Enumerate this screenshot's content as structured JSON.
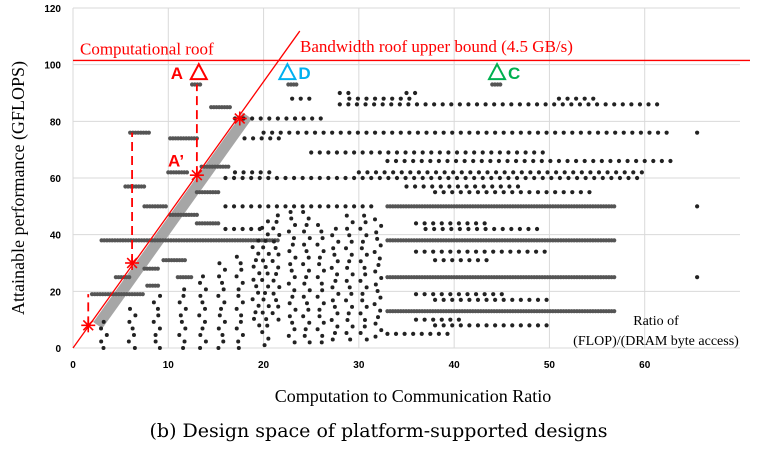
{
  "chart_data": {
    "type": "scatter",
    "title": "",
    "xlabel": "Computation to Communication Ratio",
    "ylabel": "Attainable performance (GFLOPS)",
    "xlim": [
      0,
      70
    ],
    "ylim": [
      0,
      120
    ],
    "xticks": [
      "0",
      "10",
      "20",
      "30",
      "40",
      "50",
      "60"
    ],
    "yticks": [
      "0",
      "20",
      "40",
      "60",
      "80",
      "100",
      "120"
    ],
    "grid": true,
    "computational_roof": {
      "label": "Computational roof",
      "y": 101.5,
      "color": "#ff0000"
    },
    "bandwidth_roof": {
      "label": "Bandwidth roof upper bound (4.5 GB/s)",
      "slope": 4.7,
      "x_end": 23.8,
      "color": "#ff0000"
    },
    "axis_note": [
      "Ratio of",
      "(FLOP)/(DRAM byte access)"
    ],
    "design_rows": [
      {
        "y": 93,
        "x": [
          12.5,
          13.6
        ],
        "dense": true
      },
      {
        "y": 93,
        "x": [
          22.6,
          23.6
        ],
        "dense": true
      },
      {
        "y": 93,
        "x": [
          44,
          45
        ],
        "dense": true
      },
      {
        "y": 90,
        "x": [
          28,
          29.5
        ]
      },
      {
        "y": 90,
        "x": [
          35,
          36.5
        ]
      },
      {
        "y": 88,
        "x": [
          23,
          25
        ]
      },
      {
        "y": 88,
        "x": [
          29,
          36
        ]
      },
      {
        "y": 88,
        "x": [
          51,
          55
        ]
      },
      {
        "y": 86,
        "x": [
          28,
          62
        ]
      },
      {
        "y": 85,
        "x": [
          14.5,
          16.6
        ],
        "dense": true
      },
      {
        "y": 81,
        "x": [
          17,
          26.5
        ]
      },
      {
        "y": 76,
        "x": [
          6,
          8
        ],
        "dense": true
      },
      {
        "y": 76,
        "x": [
          20,
          63
        ]
      },
      {
        "y": 76,
        "x": [
          65.5,
          65.5
        ]
      },
      {
        "y": 74,
        "x": [
          10.2,
          13
        ],
        "dense": true
      },
      {
        "y": 74,
        "x": [
          18,
          22
        ]
      },
      {
        "y": 69,
        "x": [
          25,
          50
        ]
      },
      {
        "y": 66,
        "x": [
          33,
          63
        ]
      },
      {
        "y": 64,
        "x": [
          13.5,
          16.5
        ],
        "dense": true
      },
      {
        "y": 62,
        "x": [
          10,
          12
        ],
        "dense": true
      },
      {
        "y": 62,
        "x": [
          17,
          21
        ]
      },
      {
        "y": 62,
        "x": [
          30,
          60
        ]
      },
      {
        "y": 60,
        "x": [
          16,
          60
        ]
      },
      {
        "y": 57,
        "x": [
          5.5,
          7.7
        ],
        "dense": true
      },
      {
        "y": 57,
        "x": [
          35,
          47
        ]
      },
      {
        "y": 55,
        "x": [
          13,
          15.5
        ],
        "dense": true
      },
      {
        "y": 55,
        "x": [
          38,
          55
        ]
      },
      {
        "y": 50,
        "x": [
          7.5,
          10
        ],
        "dense": true
      },
      {
        "y": 50,
        "x": [
          16,
          32
        ]
      },
      {
        "y": 50,
        "x": [
          33,
          57
        ],
        "dense": true
      },
      {
        "y": 50,
        "x": [
          65.5,
          65.5
        ]
      },
      {
        "y": 47,
        "x": [
          10.2,
          13
        ],
        "dense": true
      },
      {
        "y": 44,
        "x": [
          13,
          15.5
        ],
        "dense": true
      },
      {
        "y": 44,
        "x": [
          36,
          44
        ]
      },
      {
        "y": 42,
        "x": [
          16,
          20
        ]
      },
      {
        "y": 42,
        "x": [
          37,
          49
        ]
      },
      {
        "y": 38,
        "x": [
          3,
          21.5
        ],
        "dense": true
      },
      {
        "y": 38,
        "x": [
          33,
          57
        ],
        "dense": true
      },
      {
        "y": 34,
        "x": [
          36,
          50
        ]
      },
      {
        "y": 31,
        "x": [
          9.5,
          12
        ],
        "dense": true
      },
      {
        "y": 31,
        "x": [
          38,
          44
        ]
      },
      {
        "y": 28,
        "x": [
          7.5,
          9
        ],
        "dense": true
      },
      {
        "y": 25,
        "x": [
          4.5,
          6
        ],
        "dense": true
      },
      {
        "y": 25,
        "x": [
          11,
          12.5
        ],
        "dense": true
      },
      {
        "y": 25,
        "x": [
          33,
          57
        ],
        "dense": true
      },
      {
        "y": 25,
        "x": [
          65.5,
          65.5
        ]
      },
      {
        "y": 22,
        "x": [
          7.8,
          9
        ],
        "dense": true
      },
      {
        "y": 19,
        "x": [
          2,
          7.5
        ],
        "dense": true
      },
      {
        "y": 19,
        "x": [
          36,
          45
        ]
      },
      {
        "y": 17,
        "x": [
          38,
          50
        ]
      },
      {
        "y": 13,
        "x": [
          33,
          57
        ],
        "dense": true
      },
      {
        "y": 10,
        "x": [
          36,
          41
        ]
      },
      {
        "y": 8,
        "x": [
          38,
          50
        ]
      },
      {
        "y": 5,
        "x": [
          33,
          40
        ]
      }
    ],
    "design_columns": [
      {
        "x": 3.2,
        "y": [
          0,
          10
        ]
      },
      {
        "x": 6.2,
        "y": [
          0,
          16
        ]
      },
      {
        "x": 8.8,
        "y": [
          0,
          20
        ]
      },
      {
        "x": 11.5,
        "y": [
          0,
          22
        ]
      },
      {
        "x": 13.6,
        "y": [
          0,
          26
        ]
      },
      {
        "x": 15.6,
        "y": [
          0,
          30
        ]
      },
      {
        "x": 17.5,
        "y": [
          0,
          33
        ]
      },
      {
        "x": 19.2,
        "y": [
          8,
          40
        ]
      },
      {
        "x": 20.2,
        "y": [
          1,
          46
        ]
      },
      {
        "x": 21.3,
        "y": [
          10,
          48
        ]
      },
      {
        "x": 23,
        "y": [
          2,
          50
        ]
      },
      {
        "x": 24.5,
        "y": [
          2,
          48
        ]
      },
      {
        "x": 26,
        "y": [
          2,
          45
        ]
      },
      {
        "x": 27.5,
        "y": [
          3,
          44
        ]
      },
      {
        "x": 29,
        "y": [
          3,
          48
        ]
      },
      {
        "x": 30.5,
        "y": [
          3,
          47
        ]
      },
      {
        "x": 32,
        "y": [
          4,
          46
        ]
      }
    ],
    "design_points_labeled": [
      {
        "label": "A",
        "x": 13.2,
        "y": 97,
        "color": "#ff0000"
      },
      {
        "label": "D",
        "x": 22.5,
        "y": 97,
        "color": "#00b0f0"
      },
      {
        "label": "C",
        "x": 44.5,
        "y": 97,
        "color": "#00b050"
      }
    ],
    "a_prime_label": "A’",
    "roofline_points": [
      {
        "x": 1.6,
        "y": 8
      },
      {
        "x": 6.2,
        "y": 30
      },
      {
        "x": 13,
        "y": 61
      },
      {
        "x": 17.5,
        "y": 81
      }
    ],
    "projections": [
      {
        "x": 1.6,
        "y": [
          8,
          19
        ]
      },
      {
        "x": 6.2,
        "y": [
          30,
          76
        ]
      },
      {
        "x": 13,
        "y": [
          61,
          93
        ]
      }
    ]
  },
  "caption": "(b) Design space of platform-supported designs"
}
